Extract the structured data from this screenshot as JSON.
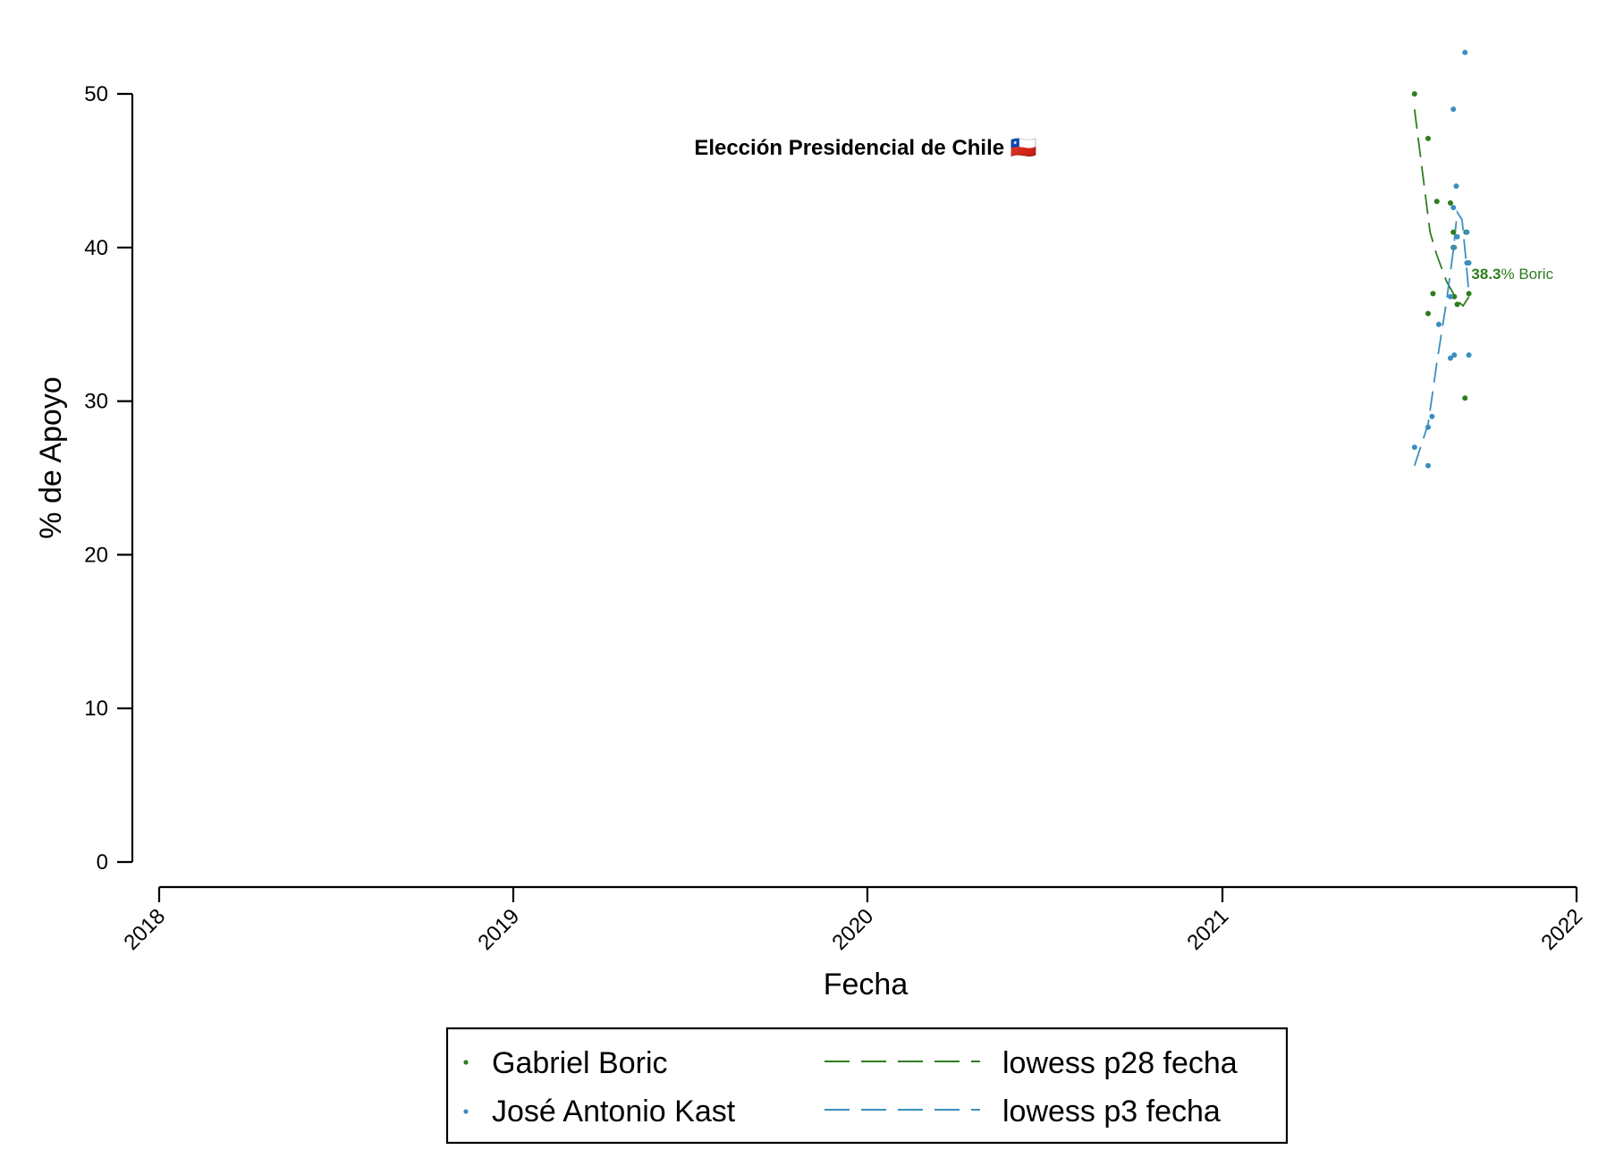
{
  "chart_data": {
    "type": "scatter",
    "title": "Elección Presidencial de Chile 🇨🇱",
    "xlabel": "Fecha",
    "ylabel": "% de Apoyo",
    "xlim": [
      "2018-01-01",
      "2022-01-01"
    ],
    "ylim": [
      0,
      50
    ],
    "x_ticks": [
      "2018",
      "2019",
      "2020",
      "2021",
      "2022"
    ],
    "x_tick_dates": [
      "2018-01-01",
      "2019-01-01",
      "2020-01-01",
      "2021-01-01",
      "2022-01-01"
    ],
    "y_ticks": [
      0,
      10,
      20,
      30,
      40,
      50
    ],
    "grid": false,
    "legend_position": "bottom",
    "series": [
      {
        "name": "Gabriel Boric",
        "color": "#2e7d1e",
        "kind": "scatter",
        "points": [
          {
            "x": "2021-07-18",
            "y": 50.0
          },
          {
            "x": "2021-08-01",
            "y": 47.1
          },
          {
            "x": "2021-08-01",
            "y": 35.7
          },
          {
            "x": "2021-08-06",
            "y": 37.0
          },
          {
            "x": "2021-08-10",
            "y": 43.0
          },
          {
            "x": "2021-08-24",
            "y": 42.9
          },
          {
            "x": "2021-08-27",
            "y": 41.0
          },
          {
            "x": "2021-08-27",
            "y": 40.0
          },
          {
            "x": "2021-08-28",
            "y": 36.8
          },
          {
            "x": "2021-08-31",
            "y": 36.3
          },
          {
            "x": "2021-09-08",
            "y": 30.2
          },
          {
            "x": "2021-09-09",
            "y": 41.0
          },
          {
            "x": "2021-09-12",
            "y": 37.0
          }
        ]
      },
      {
        "name": "José Antonio Kast",
        "color": "#3a8fbe",
        "kind": "scatter",
        "points": [
          {
            "x": "2021-07-18",
            "y": 27.0
          },
          {
            "x": "2021-08-01",
            "y": 28.3
          },
          {
            "x": "2021-08-01",
            "y": 25.8
          },
          {
            "x": "2021-08-05",
            "y": 29.0
          },
          {
            "x": "2021-08-12",
            "y": 35.0
          },
          {
            "x": "2021-08-24",
            "y": 36.8
          },
          {
            "x": "2021-08-24",
            "y": 32.8
          },
          {
            "x": "2021-08-27",
            "y": 49.0
          },
          {
            "x": "2021-08-27",
            "y": 42.6
          },
          {
            "x": "2021-08-28",
            "y": 40.0
          },
          {
            "x": "2021-08-28",
            "y": 33.0
          },
          {
            "x": "2021-08-30",
            "y": 44.0
          },
          {
            "x": "2021-08-31",
            "y": 40.7
          },
          {
            "x": "2021-09-08",
            "y": 52.7
          },
          {
            "x": "2021-09-10",
            "y": 41.0
          },
          {
            "x": "2021-09-10",
            "y": 39.0
          },
          {
            "x": "2021-09-12",
            "y": 39.0
          },
          {
            "x": "2021-09-12",
            "y": 33.0
          }
        ]
      },
      {
        "name": "lowess p28 fecha",
        "color": "#2e7d1e",
        "kind": "dashed-line",
        "points": [
          {
            "x": "2021-07-18",
            "y": 49.0
          },
          {
            "x": "2021-07-27",
            "y": 44.5
          },
          {
            "x": "2021-08-03",
            "y": 41.0
          },
          {
            "x": "2021-08-10",
            "y": 39.5
          },
          {
            "x": "2021-08-20",
            "y": 37.8
          },
          {
            "x": "2021-08-27",
            "y": 37.0
          },
          {
            "x": "2021-09-01",
            "y": 36.5
          },
          {
            "x": "2021-09-06",
            "y": 36.2
          },
          {
            "x": "2021-09-12",
            "y": 36.8
          }
        ]
      },
      {
        "name": "lowess p3 fecha",
        "color": "#3a8fbe",
        "kind": "dashed-line",
        "points": [
          {
            "x": "2021-07-18",
            "y": 25.8
          },
          {
            "x": "2021-08-01",
            "y": 28.5
          },
          {
            "x": "2021-08-10",
            "y": 32.5
          },
          {
            "x": "2021-08-20",
            "y": 36.5
          },
          {
            "x": "2021-08-27",
            "y": 39.8
          },
          {
            "x": "2021-08-31",
            "y": 42.3
          },
          {
            "x": "2021-09-05",
            "y": 41.8
          },
          {
            "x": "2021-09-09",
            "y": 39.2
          },
          {
            "x": "2021-09-12",
            "y": 37.0
          }
        ]
      }
    ],
    "annotation": {
      "value_text": "38.3",
      "suffix_text": "% Boric",
      "x": "2021-09-10",
      "y": 38.3,
      "color": "#2e7d1e"
    },
    "legend": {
      "items": [
        {
          "label": "Gabriel Boric",
          "symbol": "dot",
          "color": "#2e7d1e"
        },
        {
          "label": "José Antonio Kast",
          "symbol": "dot",
          "color": "#3a8fbe"
        },
        {
          "label": "lowess p28 fecha",
          "symbol": "dash",
          "color": "#2e7d1e"
        },
        {
          "label": "lowess p3 fecha",
          "symbol": "dash",
          "color": "#3a8fbe"
        }
      ]
    }
  }
}
